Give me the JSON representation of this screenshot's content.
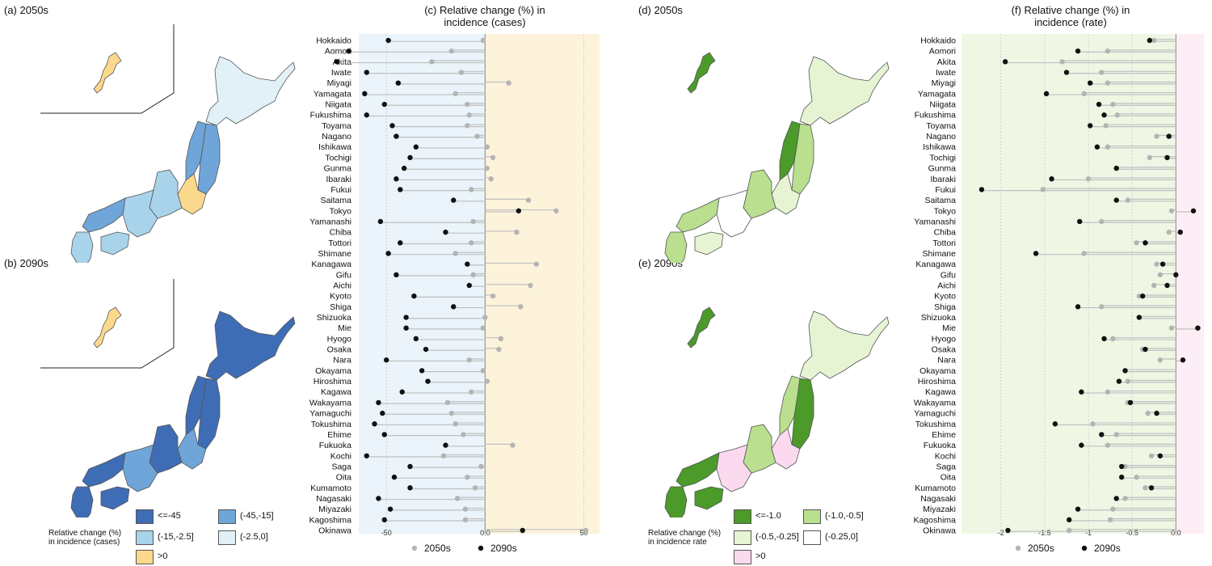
{
  "panels": {
    "a": {
      "title": "(a) 2050s"
    },
    "b": {
      "title": "(b) 2090s"
    },
    "c": {
      "title_line1": "(c) Relative change (%) in",
      "title_line2": "incidence (cases)"
    },
    "d": {
      "title": "(d) 2050s"
    },
    "e": {
      "title": "(e) 2090s"
    },
    "f": {
      "title_line1": "(f) Relative change (%) in",
      "title_line2": "incidence (rate)"
    }
  },
  "legend_cases": {
    "title_line1": "Relative change (%)",
    "title_line2": "in incidence (cases)",
    "items": [
      {
        "label": "<=-45",
        "color": "#3e6db5"
      },
      {
        "label": "(-45,-15]",
        "color": "#6fa5d8"
      },
      {
        "label": "(-15,-2.5]",
        "color": "#a9d3ea"
      },
      {
        "label": "(-2.5,0]",
        "color": "#e2f1f8"
      },
      {
        "label": ">0",
        "color": "#fbd98c"
      }
    ]
  },
  "legend_rate": {
    "title_line1": "Relative change (%)",
    "title_line2": "in incidence rate",
    "items": [
      {
        "label": "<=-1.0",
        "color": "#4b9a2a"
      },
      {
        "label": "(-1.0,-0.5]",
        "color": "#b9df8f"
      },
      {
        "label": "(-0.5,-0.25]",
        "color": "#e6f4d4"
      },
      {
        "label": "(-0.25,0]",
        "color": "#ffffff"
      },
      {
        "label": ">0",
        "color": "#fbdaf0"
      }
    ]
  },
  "colors": {
    "dot_2050": "#b4b4b4",
    "dot_2090": "#111111",
    "stem": "#bfbfbf",
    "neg_bg_cases": "#eaf4fa",
    "pos_bg_cases": "#fdf3da",
    "neg_bg_rate": "#eff7e4",
    "pos_bg_rate": "#fdeef6"
  },
  "chart_data": [
    {
      "id": "c",
      "type": "scatter",
      "title": "(c) Relative change (%) in incidence (cases)",
      "xlim": [
        -64,
        58
      ],
      "xticks": [
        -50,
        0,
        50
      ],
      "legend_placement": "bottom",
      "categories": [
        "Hokkaido",
        "Aomori",
        "Akita",
        "Iwate",
        "Miyagi",
        "Yamagata",
        "Niigata",
        "Fukushima",
        "Toyama",
        "Nagano",
        "Ishikawa",
        "Tochigi",
        "Gunma",
        "Ibaraki",
        "Fukui",
        "Saitama",
        "Tokyo",
        "Yamanashi",
        "Chiba",
        "Tottori",
        "Shimane",
        "Kanagawa",
        "Gifu",
        "Aichi",
        "Kyoto",
        "Shiga",
        "Shizuoka",
        "Mie",
        "Hyogo",
        "Osaka",
        "Nara",
        "Okayama",
        "Hiroshima",
        "Kagawa",
        "Wakayama",
        "Yamaguchi",
        "Tokushima",
        "Ehime",
        "Fukuoka",
        "Kochi",
        "Saga",
        "Oita",
        "Kumamoto",
        "Nagasaki",
        "Miyazaki",
        "Kagoshima",
        "Okinawa"
      ],
      "series": [
        {
          "name": "2050s",
          "values": [
            -1,
            -17,
            -27,
            -12,
            12,
            -15,
            -9,
            -8,
            -9,
            -4,
            1,
            4,
            1,
            3,
            -7,
            22,
            36,
            -6,
            16,
            -7,
            -15,
            26,
            -6,
            23,
            4,
            18,
            0,
            -1,
            8,
            7,
            -8,
            -1,
            1,
            -7,
            -19,
            -17,
            -15,
            -11,
            14,
            -21,
            -2,
            -9,
            -5,
            -14,
            -10,
            -10,
            51
          ]
        },
        {
          "name": "2090s",
          "values": [
            -49,
            -69,
            -75,
            -60,
            -44,
            -61,
            -51,
            -60,
            -47,
            -45,
            -35,
            -38,
            -41,
            -45,
            -43,
            -16,
            17,
            -53,
            -20,
            -43,
            -49,
            -9,
            -45,
            -8,
            -36,
            -16,
            -40,
            -40,
            -35,
            -30,
            -50,
            -32,
            -29,
            -42,
            -54,
            -52,
            -56,
            -51,
            -20,
            -60,
            -38,
            -46,
            -38,
            -54,
            -48,
            -51,
            19
          ]
        }
      ]
    },
    {
      "id": "f",
      "type": "scatter",
      "title": "(f) Relative change (%) in incidence (rate)",
      "xlim": [
        -2.45,
        0.32
      ],
      "xticks": [
        -2.0,
        -1.5,
        -1.0,
        -0.5,
        0.0
      ],
      "legend_placement": "bottom",
      "categories": [
        "Hokkaido",
        "Aomori",
        "Akita",
        "Iwate",
        "Miyagi",
        "Yamagata",
        "Niigata",
        "Fukushima",
        "Toyama",
        "Nagano",
        "Ishikawa",
        "Tochigi",
        "Gunma",
        "Ibaraki",
        "Fukui",
        "Saitama",
        "Tokyo",
        "Yamanashi",
        "Chiba",
        "Tottori",
        "Shimane",
        "Kanagawa",
        "Gifu",
        "Aichi",
        "Kyoto",
        "Shiga",
        "Shizuoka",
        "Mie",
        "Hyogo",
        "Osaka",
        "Nara",
        "Okayama",
        "Hiroshima",
        "Kagawa",
        "Wakayama",
        "Yamaguchi",
        "Tokushima",
        "Ehime",
        "Fukuoka",
        "Kochi",
        "Saga",
        "Oita",
        "Kumamoto",
        "Nagasaki",
        "Miyazaki",
        "Kagoshima",
        "Okinawa"
      ],
      "series": [
        {
          "name": "2050s",
          "values": [
            -0.25,
            -0.78,
            -1.3,
            -0.85,
            -0.78,
            -1.05,
            -0.72,
            -0.67,
            -0.8,
            -0.22,
            -0.78,
            -0.3,
            -0.68,
            -1.0,
            -1.52,
            -0.55,
            -0.05,
            -0.85,
            -0.08,
            -0.45,
            -1.05,
            -0.22,
            -0.18,
            -0.25,
            -0.42,
            -0.85,
            -0.42,
            -0.05,
            -0.72,
            -0.38,
            -0.18,
            -0.58,
            -0.55,
            -0.78,
            -0.55,
            -0.32,
            -0.95,
            -0.68,
            -0.78,
            -0.28,
            -0.58,
            -0.45,
            -0.35,
            -0.58,
            -0.72,
            -0.75,
            -1.22
          ]
        },
        {
          "name": "2090s",
          "values": [
            -0.3,
            -1.12,
            -1.95,
            -1.25,
            -0.98,
            -1.48,
            -0.88,
            -0.82,
            -0.98,
            -0.08,
            -0.9,
            -0.1,
            -0.68,
            -1.42,
            -2.22,
            -0.68,
            0.2,
            -1.1,
            0.05,
            -0.35,
            -1.6,
            -0.15,
            0.0,
            -0.1,
            -0.38,
            -1.12,
            -0.42,
            0.25,
            -0.82,
            -0.35,
            0.08,
            -0.58,
            -0.65,
            -1.08,
            -0.52,
            -0.22,
            -1.38,
            -0.85,
            -1.08,
            -0.18,
            -0.62,
            -0.62,
            -0.28,
            -0.68,
            -1.12,
            -1.22,
            -1.92
          ]
        }
      ]
    }
  ]
}
